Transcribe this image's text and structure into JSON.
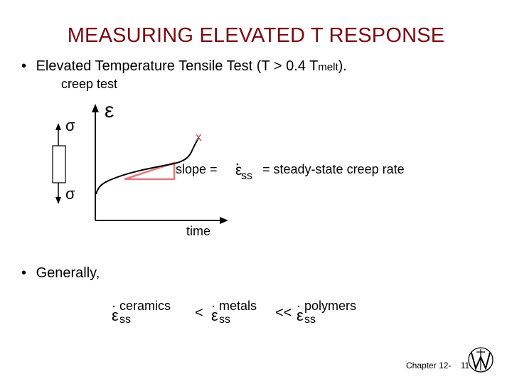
{
  "slide": {
    "title": "MEASURING ELEVATED T RESPONSE",
    "bullet1_prefix": "Elevated Temperature Tensile Test (T > 0.4 T",
    "bullet1_sub": "melt",
    "bullet1_suffix": ").",
    "bullet2": "Generally,",
    "bullet_marker": "•"
  },
  "diagram": {
    "caption": "creep test",
    "sigma": "σ",
    "epsilon": "ε",
    "fracture_mark": "x",
    "slope_label": "slope = ",
    "slope_eps": "ε",
    "slope_sub": "ss",
    "slope_rest": " = steady-state creep rate",
    "xlabel": "time",
    "colors": {
      "highlight": "#e07a80",
      "fracture": "#c0404a"
    }
  },
  "comparison": {
    "eps": "ε",
    "sub": "ss",
    "sup1": "ceramics",
    "op1": "<",
    "sup2": "metals",
    "op2": "<<",
    "sup3": "polymers"
  },
  "footer": {
    "chapter": "Chapter 12-",
    "page": "11"
  }
}
